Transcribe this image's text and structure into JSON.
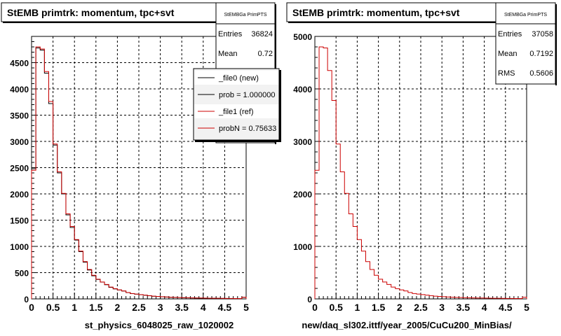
{
  "chart_data": [
    {
      "type": "histogram",
      "title": "StEMB primtrk: momentum, tpc+svt",
      "xlabel": "st_physics_6048025_raw_1020002",
      "xlim": [
        0,
        5
      ],
      "ylim": [
        0,
        5000
      ],
      "x_ticks": [
        "0",
        "0.5",
        "1",
        "1.5",
        "2",
        "2.5",
        "3",
        "3.5",
        "4",
        "4.5",
        "5"
      ],
      "y_ticks": [
        "0",
        "500",
        "1000",
        "1500",
        "2000",
        "2500",
        "3000",
        "3500",
        "4000",
        "4500"
      ],
      "grid": true,
      "bin_width": 0.1,
      "stats": {
        "name": "StEMBGa PrimPTS",
        "rows": [
          {
            "label": "Entries",
            "value": "36824"
          },
          {
            "label": "Mean",
            "value": "0.72"
          }
        ]
      },
      "legend": {
        "placement": "top-right",
        "entries": [
          {
            "label": "_file0 (new)",
            "color": "#000000"
          },
          {
            "label": "prob = 1.000000",
            "color": "#000000"
          },
          {
            "label": "_file1 (ref)",
            "color": "#cc0000"
          },
          {
            "label": "probN = 0.75633",
            "color": "#cc0000"
          }
        ]
      },
      "series": [
        {
          "color": "#000000",
          "values": [
            2480,
            4780,
            4740,
            4300,
            3720,
            2930,
            2400,
            2000,
            1600,
            1360,
            1120,
            900,
            700,
            550,
            440,
            370,
            320,
            270,
            220,
            190,
            170,
            150,
            120,
            100,
            90,
            80,
            70,
            60,
            50,
            45,
            40,
            35,
            30,
            28,
            25,
            22,
            20,
            18,
            16,
            15,
            14,
            12,
            11,
            10,
            9,
            8,
            7,
            6,
            6,
            30
          ]
        },
        {
          "color": "#cc0000",
          "values": [
            2450,
            4800,
            4760,
            4330,
            3760,
            2950,
            2420,
            2010,
            1620,
            1380,
            1130,
            910,
            710,
            560,
            450,
            375,
            322,
            275,
            225,
            195,
            172,
            152,
            122,
            102,
            92,
            82,
            72,
            62,
            52,
            46,
            41,
            36,
            31,
            29,
            26,
            23,
            21,
            19,
            17,
            16,
            15,
            13,
            12,
            11,
            10,
            9,
            8,
            7,
            7,
            32
          ]
        }
      ]
    },
    {
      "type": "histogram",
      "title": "StEMB primtrk: momentum, tpc+svt",
      "xlabel": "new/daq_sl302.ittf/year_2005/CuCu200_MinBias/",
      "xlim": [
        0,
        5
      ],
      "ylim": [
        0,
        5000
      ],
      "x_ticks": [
        "0",
        "0.5",
        "1",
        "1.5",
        "2",
        "2.5",
        "3",
        "3.5",
        "4",
        "4.5",
        "5"
      ],
      "y_ticks": [
        "0",
        "1000",
        "2000",
        "3000",
        "4000",
        "5000"
      ],
      "grid": true,
      "bin_width": 0.1,
      "stats": {
        "name": "StEMBGa PrimPTS",
        "rows": [
          {
            "label": "Entries",
            "value": "37058"
          },
          {
            "label": "Mean",
            "value": "0.7192"
          },
          {
            "label": "RMS",
            "value": "0.5606"
          }
        ]
      },
      "series": [
        {
          "color": "#cc0000",
          "values": [
            2450,
            4800,
            4780,
            4350,
            3780,
            2950,
            2420,
            2010,
            1620,
            1380,
            1130,
            910,
            710,
            560,
            450,
            375,
            322,
            275,
            225,
            195,
            172,
            152,
            122,
            102,
            92,
            82,
            72,
            62,
            52,
            46,
            41,
            36,
            31,
            29,
            26,
            23,
            21,
            19,
            17,
            16,
            15,
            13,
            12,
            11,
            10,
            9,
            8,
            7,
            7,
            32
          ]
        }
      ]
    }
  ]
}
